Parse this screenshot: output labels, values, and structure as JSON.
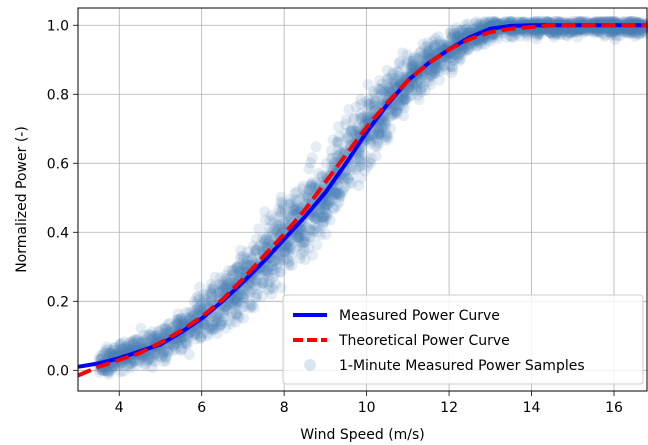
{
  "chart_data": {
    "type": "scatter",
    "title": "",
    "xlabel": "Wind Speed (m/s)",
    "ylabel": "Normalized Power (-)",
    "xlim": [
      3.0,
      16.8
    ],
    "ylim": [
      -0.06,
      1.05
    ],
    "xticks": [
      4,
      6,
      8,
      10,
      12,
      14,
      16
    ],
    "yticks": [
      0.0,
      0.2,
      0.4,
      0.6,
      0.8,
      1.0
    ],
    "xtick_labels": [
      "4",
      "6",
      "8",
      "10",
      "12",
      "14",
      "16"
    ],
    "ytick_labels": [
      "0.0",
      "0.2",
      "0.4",
      "0.6",
      "0.8",
      "1.0"
    ],
    "grid": true,
    "legend_position": "lower-right",
    "series": [
      {
        "name": "Measured Power Curve",
        "kind": "line",
        "style": "solid",
        "color": "#0000ff",
        "x": [
          3.0,
          3.5,
          4.0,
          4.5,
          5.0,
          5.5,
          6.0,
          6.5,
          7.0,
          7.5,
          8.0,
          8.5,
          9.0,
          9.5,
          10.0,
          10.5,
          11.0,
          11.5,
          12.0,
          12.5,
          13.0,
          13.5,
          14.0,
          14.5,
          15.0,
          16.0,
          16.8
        ],
        "y": [
          0.01,
          0.02,
          0.035,
          0.055,
          0.075,
          0.11,
          0.15,
          0.2,
          0.255,
          0.315,
          0.38,
          0.445,
          0.515,
          0.6,
          0.69,
          0.77,
          0.84,
          0.89,
          0.93,
          0.965,
          0.99,
          0.998,
          1.0,
          1.0,
          1.0,
          1.0,
          1.0
        ]
      },
      {
        "name": "Theoretical Power Curve",
        "kind": "line",
        "style": "dashed",
        "color": "#ff0000",
        "x": [
          3.0,
          3.5,
          4.0,
          4.5,
          5.0,
          5.5,
          6.0,
          6.5,
          7.0,
          7.5,
          8.0,
          8.5,
          9.0,
          9.5,
          10.0,
          10.5,
          11.0,
          11.5,
          12.0,
          12.5,
          13.0,
          13.5,
          14.0,
          14.5,
          15.0,
          16.0,
          16.8
        ],
        "y": [
          -0.015,
          0.01,
          0.03,
          0.05,
          0.08,
          0.115,
          0.155,
          0.205,
          0.265,
          0.33,
          0.395,
          0.465,
          0.545,
          0.625,
          0.705,
          0.775,
          0.84,
          0.89,
          0.93,
          0.96,
          0.98,
          0.99,
          0.995,
          1.0,
          1.0,
          1.0,
          1.0
        ]
      },
      {
        "name": "1-Minute Measured Power Samples",
        "kind": "scatter",
        "color": "#4a7fb3",
        "opacity": 0.15,
        "sample_count": 3000,
        "x_range": [
          3.5,
          16.8
        ],
        "spread": 0.035
      }
    ]
  }
}
